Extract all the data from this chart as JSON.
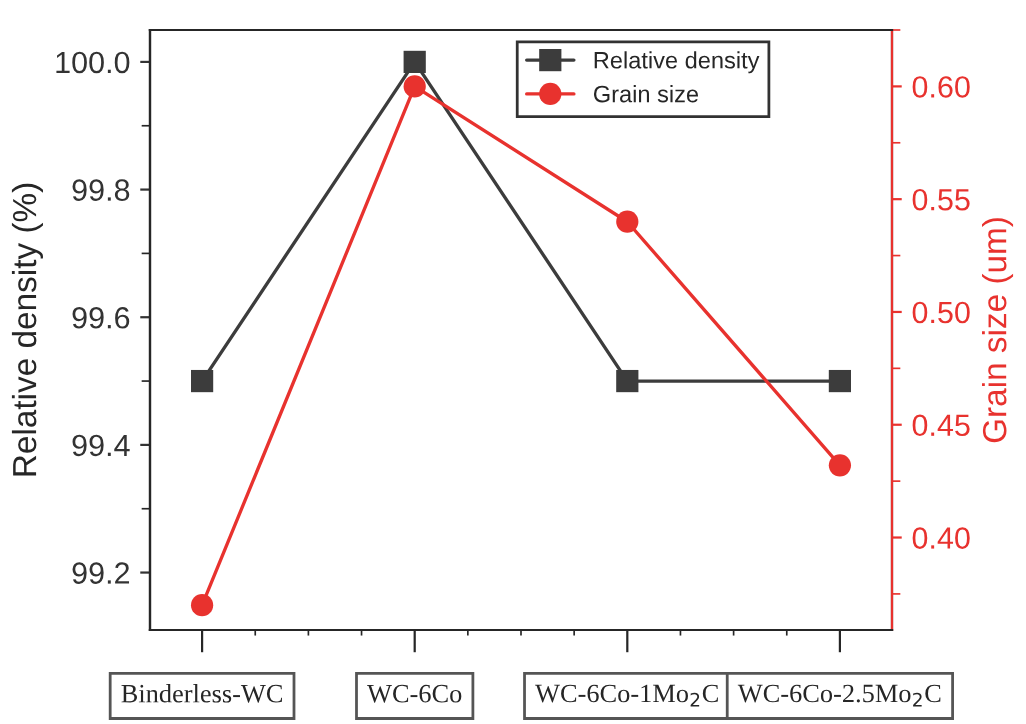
{
  "chart_data": {
    "type": "line",
    "ylabel": "Relative density (%)",
    "y2label": "Grain size (um)",
    "categories": [
      "Binderless-WC",
      "WC-6Co",
      "WC-6Co-1Mo$_{2}$C",
      "WC-6Co-2.5Mo$_{2}$C"
    ],
    "series": [
      {
        "name": "Relative density",
        "color": "#3c3c3c",
        "marker": "square",
        "values": [
          99.5,
          100.0,
          99.5,
          99.5
        ]
      },
      {
        "name": "Grain size",
        "color": "#e8322e",
        "marker": "circle",
        "axis": "y2",
        "values": [
          0.37,
          0.6,
          0.54,
          0.432
        ]
      }
    ],
    "ylim": [
      99.11,
      100.05
    ],
    "yticks": [
      {
        "value": 99.2,
        "label": "99.2"
      },
      {
        "value": 99.4,
        "label": "99.4"
      },
      {
        "value": 99.6,
        "label": "99.6"
      },
      {
        "value": 99.8,
        "label": "99.8"
      },
      {
        "value": 100.0,
        "label": "100.0"
      }
    ],
    "y2lim": [
      0.359,
      0.625
    ],
    "y2ticks": [
      {
        "value": 0.4,
        "label": "0.40"
      },
      {
        "value": 0.45,
        "label": "0.45"
      },
      {
        "value": 0.5,
        "label": "0.50"
      },
      {
        "value": 0.55,
        "label": "0.55"
      },
      {
        "value": 0.6,
        "label": "0.60"
      }
    ],
    "legend": "top right",
    "grid": false
  }
}
